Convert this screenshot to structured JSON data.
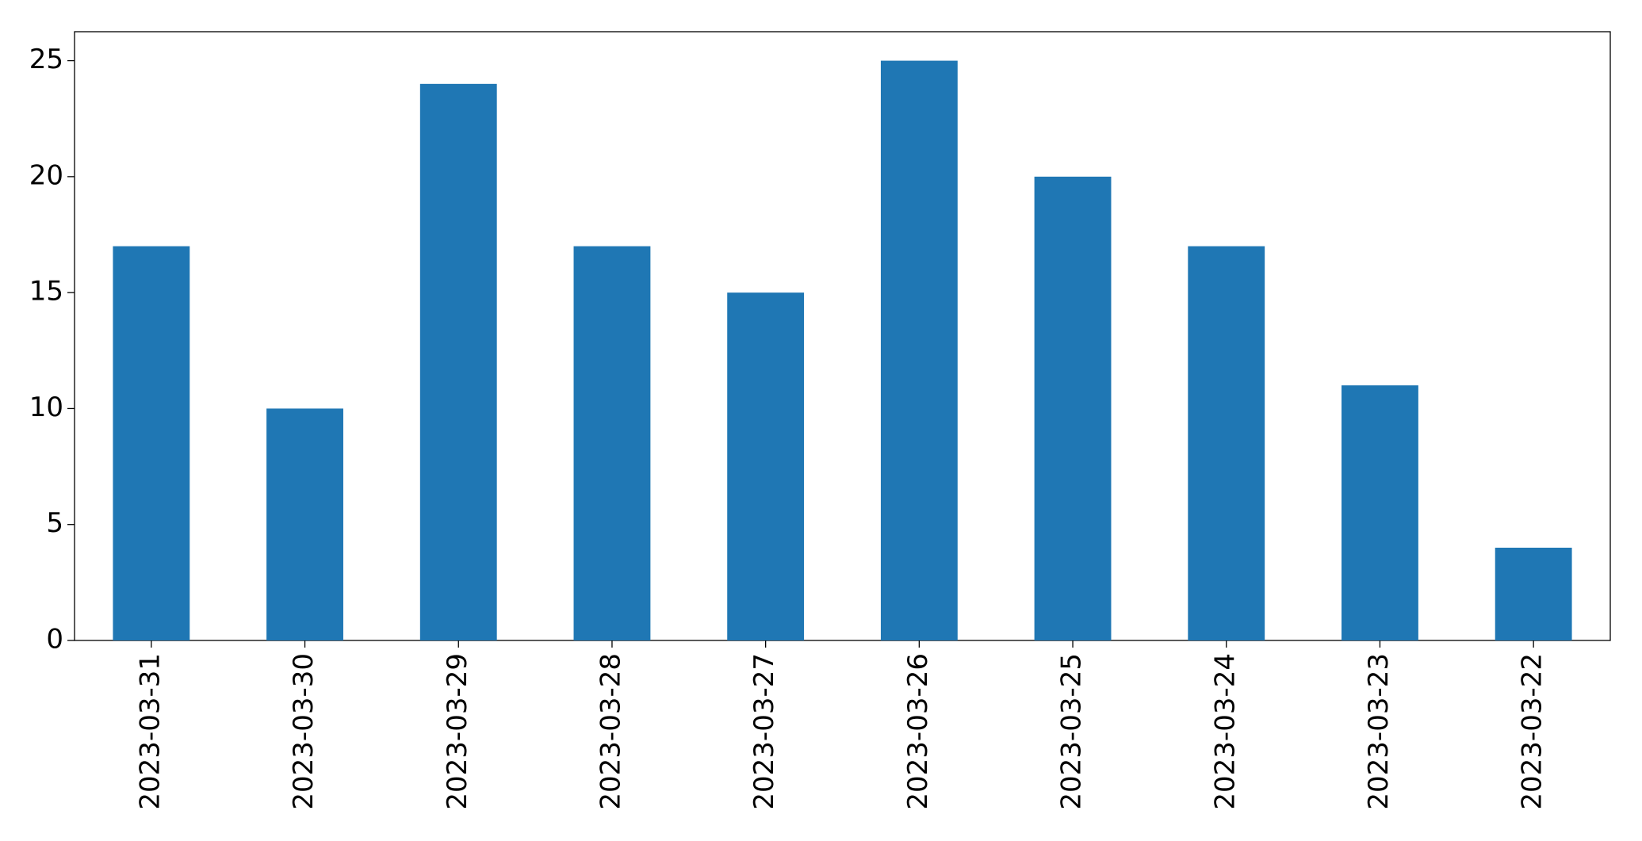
{
  "chart_data": {
    "type": "bar",
    "categories": [
      "2023-03-31",
      "2023-03-30",
      "2023-03-29",
      "2023-03-28",
      "2023-03-27",
      "2023-03-26",
      "2023-03-25",
      "2023-03-24",
      "2023-03-23",
      "2023-03-22"
    ],
    "values": [
      17,
      10,
      24,
      17,
      15,
      25,
      20,
      17,
      11,
      4
    ],
    "color": "#1f77b4",
    "ylim": [
      0,
      26.25
    ],
    "yticks": [
      0,
      5,
      10,
      15,
      20,
      25
    ],
    "grid": false
  }
}
